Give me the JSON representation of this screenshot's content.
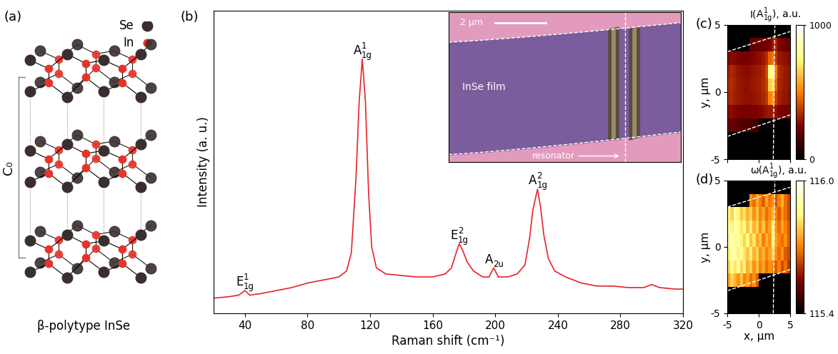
{
  "diagram": {
    "panel": "(a)",
    "title": "β-polytype InSe",
    "lattice_label": "C₀",
    "legend": [
      {
        "name": "Se",
        "color": "#3b2e2e"
      },
      {
        "name": "In",
        "color": "#e8332a"
      }
    ]
  },
  "chart_data": [
    {
      "type": "line",
      "panel": "(b)",
      "x": [
        20,
        30,
        36,
        40,
        43,
        50,
        60,
        70,
        80,
        90,
        100,
        105,
        108,
        111,
        113,
        115,
        117,
        119,
        121,
        124,
        130,
        140,
        150,
        160,
        168,
        172,
        175,
        177,
        179,
        182,
        186,
        192,
        196,
        199,
        202,
        208,
        214,
        219,
        222,
        224,
        227,
        229,
        231,
        234,
        238,
        245,
        255,
        265,
        275,
        285,
        295,
        300,
        305,
        315,
        320
      ],
      "values": [
        5,
        5.5,
        6,
        7.5,
        6,
        6.5,
        7.5,
        8.5,
        10,
        11,
        12,
        14,
        20,
        45,
        70,
        84,
        70,
        40,
        22,
        15,
        13,
        12.5,
        12,
        12,
        13,
        15,
        20,
        23,
        21,
        17,
        14,
        12,
        12,
        15,
        12,
        12,
        13,
        16,
        25,
        34,
        41,
        35,
        26,
        18,
        14,
        12,
        10,
        9,
        9,
        8.5,
        8.5,
        9.5,
        8.5,
        8,
        8
      ],
      "color": "#e8222a",
      "xlim": [
        20,
        320
      ],
      "xticks": [
        40,
        80,
        120,
        160,
        200,
        240,
        280,
        320
      ],
      "ylim": [
        0,
        100
      ],
      "tick_labels": "x",
      "x_label": "Raman shift (cm⁻¹)",
      "y_label": "Intensity (a. u.)",
      "peaks": [
        {
          "x": 40,
          "base": "E",
          "sub": "1g",
          "sup": "1"
        },
        {
          "x": 115,
          "base": "A",
          "sub": "1g",
          "sup": "1"
        },
        {
          "x": 177,
          "base": "E",
          "sub": "1g",
          "sup": "2"
        },
        {
          "x": 199,
          "base": "A",
          "sub": "2u"
        },
        {
          "x": 227,
          "base": "A",
          "sub": "1g",
          "sup": "2"
        }
      ],
      "inset": {
        "scale_bar": "2 μm",
        "film": "InSe film",
        "resonator": "resonator"
      }
    },
    {
      "type": "heatmap",
      "panel": "(c)",
      "xlim": [
        -5,
        5
      ],
      "ylim": [
        -5,
        5
      ],
      "xticks": [
        -5,
        0,
        5
      ],
      "yticks": [
        -5,
        0,
        5
      ],
      "y_label": "y, μm",
      "tick_labels": "y",
      "cells": [
        [
          null,
          null,
          null,
          null,
          null,
          null,
          null,
          null,
          null,
          null,
          null,
          null,
          null,
          null,
          null,
          null,
          null,
          null,
          null,
          null
        ],
        [
          null,
          null,
          null,
          null,
          null,
          null,
          null,
          180,
          190,
          200,
          210,
          220,
          230,
          250,
          300,
          320,
          260,
          220,
          210,
          200
        ],
        [
          260,
          270,
          260,
          250,
          240,
          240,
          240,
          250,
          260,
          270,
          280,
          300,
          340,
          450,
          480,
          360,
          300,
          290,
          280,
          270
        ],
        [
          320,
          330,
          310,
          290,
          280,
          270,
          270,
          280,
          290,
          300,
          310,
          330,
          400,
          750,
          850,
          500,
          340,
          320,
          300,
          290
        ],
        [
          340,
          340,
          320,
          300,
          290,
          280,
          280,
          290,
          300,
          310,
          320,
          340,
          380,
          650,
          700,
          450,
          330,
          310,
          300,
          290
        ],
        [
          330,
          330,
          310,
          300,
          290,
          280,
          280,
          280,
          290,
          300,
          310,
          330,
          360,
          500,
          550,
          380,
          320,
          300,
          290,
          280
        ],
        [
          270,
          270,
          260,
          250,
          240,
          240,
          240,
          240,
          250,
          250,
          260,
          270,
          290,
          300,
          320,
          280,
          250,
          240,
          230,
          220
        ],
        [
          200,
          200,
          190,
          180,
          170,
          160,
          150,
          150,
          140,
          130,
          null,
          null,
          null,
          null,
          null,
          null,
          null,
          null,
          null,
          null
        ],
        [
          null,
          null,
          null,
          null,
          null,
          null,
          null,
          null,
          null,
          null,
          null,
          null,
          null,
          null,
          null,
          null,
          null,
          null,
          null,
          null
        ],
        [
          null,
          null,
          null,
          null,
          null,
          null,
          null,
          null,
          null,
          null,
          null,
          null,
          null,
          null,
          null,
          null,
          null,
          null,
          null,
          null
        ]
      ],
      "colorbar": {
        "before": "I(",
        "base": "A",
        "sub": "1g",
        "sup": "1",
        "after": "), a.u.",
        "range": [
          0,
          1000
        ],
        "ticks": [
          0,
          1000
        ]
      }
    },
    {
      "type": "heatmap",
      "panel": "(d)",
      "xlim": [
        -5,
        5
      ],
      "ylim": [
        -5,
        5
      ],
      "xticks": [
        -5,
        0,
        5
      ],
      "yticks": [
        -5,
        0,
        5
      ],
      "x_label": "x, μm",
      "y_label": "y, μm",
      "cells": [
        [
          null,
          null,
          null,
          null,
          null,
          null,
          null,
          null,
          null,
          null,
          null,
          null,
          null,
          null,
          null,
          null,
          null,
          null,
          null,
          null
        ],
        [
          null,
          null,
          null,
          null,
          null,
          null,
          null,
          115.72,
          115.68,
          115.75,
          115.7,
          115.66,
          115.74,
          115.69,
          115.72,
          115.65,
          115.7,
          115.76,
          115.68,
          115.64
        ],
        [
          115.86,
          115.8,
          115.9,
          115.84,
          115.78,
          115.82,
          115.76,
          115.8,
          115.72,
          115.78,
          115.7,
          115.74,
          115.68,
          115.72,
          115.76,
          115.7,
          115.66,
          115.72,
          115.68,
          115.64
        ],
        [
          115.9,
          115.84,
          115.92,
          115.86,
          115.82,
          115.88,
          115.78,
          115.84,
          115.76,
          115.8,
          115.72,
          115.78,
          115.7,
          115.74,
          115.84,
          115.72,
          115.68,
          115.74,
          115.7,
          115.66
        ],
        [
          115.88,
          115.92,
          115.86,
          115.9,
          115.84,
          115.8,
          115.86,
          115.78,
          115.82,
          115.74,
          115.78,
          115.7,
          115.76,
          115.72,
          115.86,
          115.74,
          115.7,
          115.68,
          115.72,
          115.66
        ],
        [
          115.84,
          115.88,
          115.92,
          115.84,
          115.88,
          115.82,
          115.78,
          115.84,
          115.76,
          115.8,
          115.72,
          115.76,
          115.7,
          115.74,
          115.8,
          115.72,
          115.68,
          115.72,
          115.66,
          115.64
        ],
        [
          115.8,
          115.86,
          115.82,
          115.88,
          115.8,
          115.84,
          115.76,
          115.8,
          115.72,
          115.78,
          115.7,
          115.74,
          115.68,
          115.72,
          115.7,
          115.66,
          115.7,
          115.64,
          115.68,
          115.62
        ],
        [
          115.74,
          115.8,
          115.76,
          115.72,
          115.78,
          115.7,
          115.74,
          115.68,
          115.72,
          115.66,
          null,
          null,
          null,
          null,
          null,
          null,
          null,
          null,
          null,
          null
        ],
        [
          null,
          null,
          null,
          null,
          null,
          null,
          null,
          null,
          null,
          null,
          null,
          null,
          null,
          null,
          null,
          null,
          null,
          null,
          null,
          null
        ],
        [
          null,
          null,
          null,
          null,
          null,
          null,
          null,
          null,
          null,
          null,
          null,
          null,
          null,
          null,
          null,
          null,
          null,
          null,
          null,
          null
        ]
      ],
      "colorbar": {
        "before": "ω(",
        "base": "A",
        "sub": "1g",
        "sup": "1",
        "after": "), a.u.",
        "range": [
          115.4,
          116.0
        ],
        "ticks": [
          115.4,
          116.0
        ]
      }
    }
  ]
}
